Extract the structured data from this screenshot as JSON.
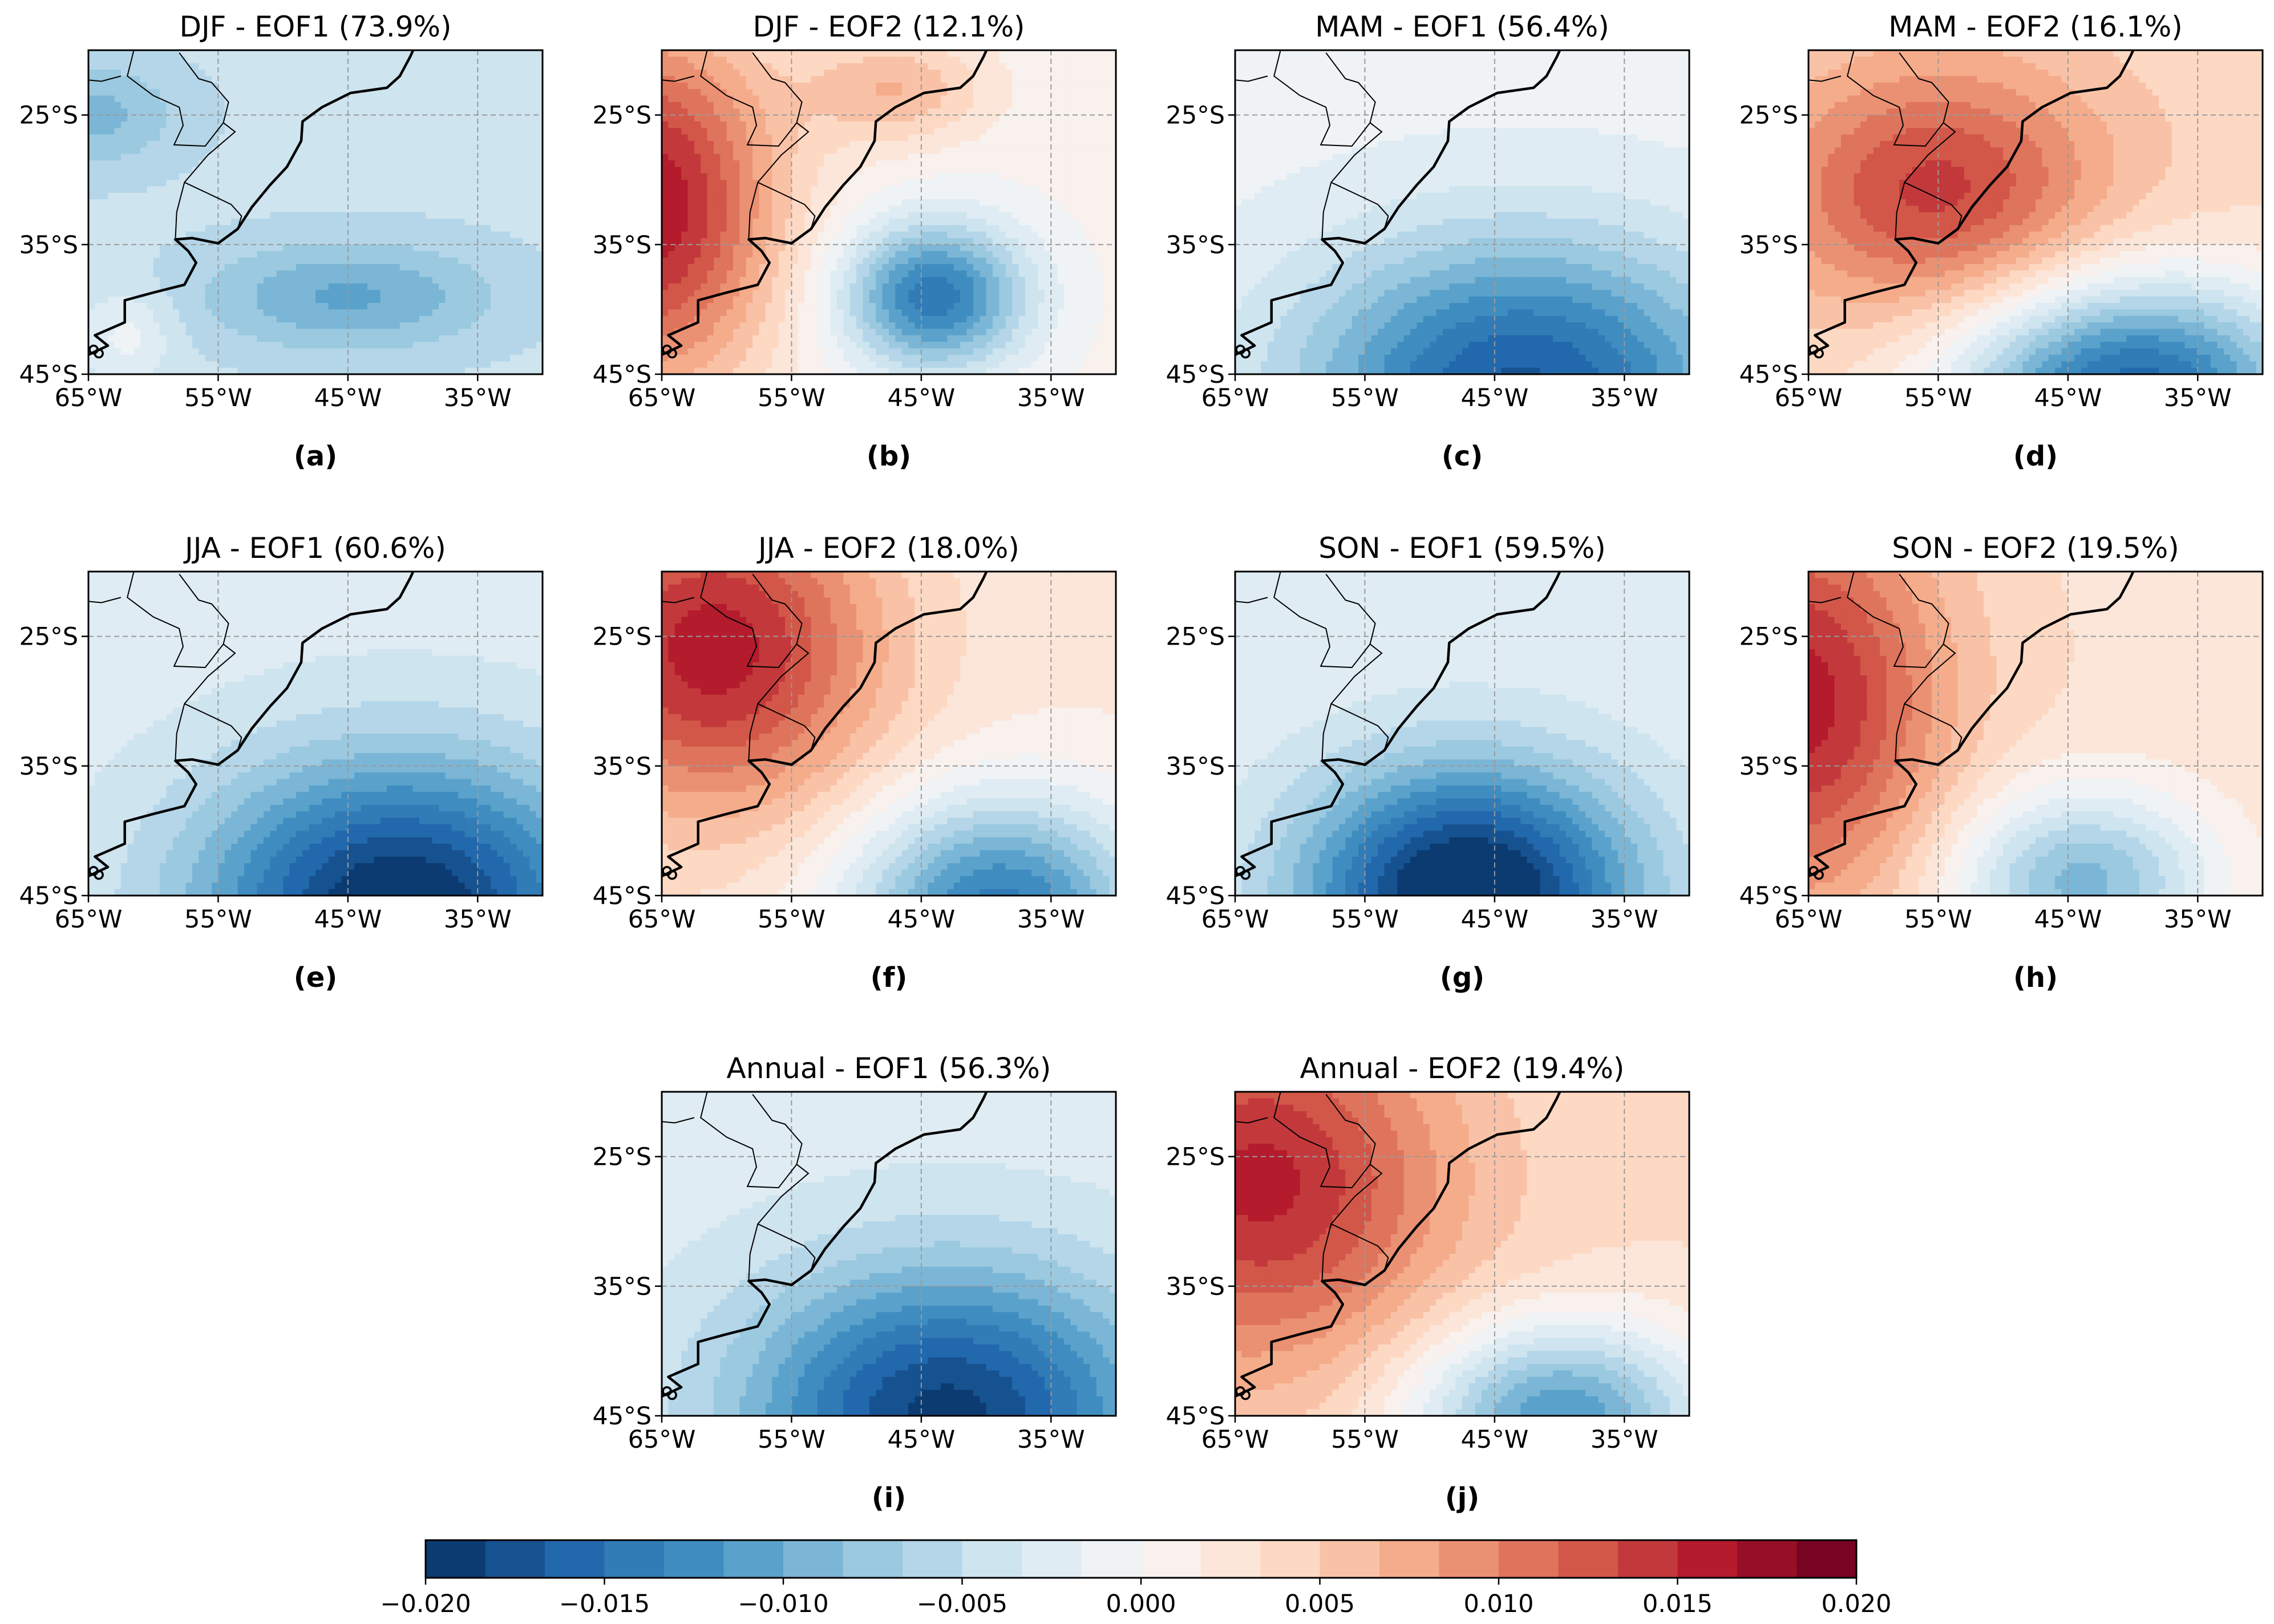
{
  "chart_data": {
    "type": "heatmap",
    "variable": "EOF spatial pattern",
    "map_extent": {
      "lon": [
        -65,
        -30
      ],
      "lat": [
        -45,
        -20
      ]
    },
    "xticks": [
      -65,
      -55,
      -45,
      -35
    ],
    "yticks": [
      -25,
      -35,
      -45
    ],
    "xtick_labels": [
      "65°W",
      "55°W",
      "45°W",
      "35°W"
    ],
    "ytick_labels": [
      "25°S",
      "35°S",
      "45°S"
    ],
    "gridlines": true,
    "panels": [
      {
        "id": "a",
        "label": "(a)",
        "title": "DJF - EOF1 (73.9%)",
        "season": "DJF",
        "mode": "EOF1",
        "variance_pct": 73.9,
        "background": -0.0045,
        "centers": [
          {
            "lon": -45,
            "lat": -39,
            "value": -0.0058,
            "sx": 8,
            "sy": 3
          },
          {
            "lon": -65,
            "lat": -25,
            "value": -0.0045,
            "sx": 5,
            "sy": 3
          },
          {
            "lon": -62,
            "lat": -42,
            "value": 0.0035,
            "sx": 2.5,
            "sy": 2.5
          }
        ]
      },
      {
        "id": "b",
        "label": "(b)",
        "title": "DJF - EOF2 (12.1%)",
        "season": "DJF",
        "mode": "EOF2",
        "variance_pct": 12.1,
        "background": 0.0005,
        "centers": [
          {
            "lon": -44,
            "lat": -39,
            "value": -0.015,
            "sx": 5,
            "sy": 4
          },
          {
            "lon": -66,
            "lat": -32,
            "value": 0.016,
            "sx": 7,
            "sy": 10
          },
          {
            "lon": -47,
            "lat": -23,
            "value": 0.006,
            "sx": 5,
            "sy": 3
          }
        ]
      },
      {
        "id": "c",
        "label": "(c)",
        "title": "MAM - EOF1 (56.4%)",
        "season": "MAM",
        "mode": "EOF1",
        "variance_pct": 56.4,
        "background": -0.001,
        "centers": [
          {
            "lon": -43,
            "lat": -46,
            "value": -0.016,
            "sx": 12,
            "sy": 8
          }
        ]
      },
      {
        "id": "d",
        "label": "(d)",
        "title": "MAM - EOF2 (16.1%)",
        "season": "MAM",
        "mode": "EOF2",
        "variance_pct": 16.1,
        "background": 0.004,
        "centers": [
          {
            "lon": -40,
            "lat": -46,
            "value": -0.02,
            "sx": 10,
            "sy": 6
          },
          {
            "lon": -55,
            "lat": -31,
            "value": 0.01,
            "sx": 9,
            "sy": 7
          }
        ]
      },
      {
        "id": "e",
        "label": "(e)",
        "title": "JJA - EOF1 (60.6%)",
        "season": "JJA",
        "mode": "EOF1",
        "variance_pct": 60.6,
        "background": -0.0025,
        "centers": [
          {
            "lon": -41,
            "lat": -46,
            "value": -0.018,
            "sx": 11,
            "sy": 8
          }
        ]
      },
      {
        "id": "f",
        "label": "(f)",
        "title": "JJA - EOF2 (18.0%)",
        "season": "JJA",
        "mode": "EOF2",
        "variance_pct": 18.0,
        "background": 0.002,
        "centers": [
          {
            "lon": -39,
            "lat": -46,
            "value": -0.016,
            "sx": 8,
            "sy": 6
          },
          {
            "lon": -61,
            "lat": -26,
            "value": 0.014,
            "sx": 9,
            "sy": 9
          }
        ]
      },
      {
        "id": "g",
        "label": "(g)",
        "title": "SON - EOF1 (59.5%)",
        "season": "SON",
        "mode": "EOF1",
        "variance_pct": 59.5,
        "background": -0.002,
        "centers": [
          {
            "lon": -47,
            "lat": -45,
            "value": -0.02,
            "sx": 9,
            "sy": 7
          }
        ]
      },
      {
        "id": "h",
        "label": "(h)",
        "title": "SON - EOF2 (19.5%)",
        "season": "SON",
        "mode": "EOF2",
        "variance_pct": 19.5,
        "background": 0.003,
        "centers": [
          {
            "lon": -44,
            "lat": -44,
            "value": -0.012,
            "sx": 7,
            "sy": 5
          },
          {
            "lon": -66,
            "lat": -30,
            "value": 0.013,
            "sx": 8,
            "sy": 11
          }
        ]
      },
      {
        "id": "i",
        "label": "(i)",
        "title": "Annual - EOF1 (56.3%)",
        "season": "Annual",
        "mode": "EOF1",
        "variance_pct": 56.3,
        "background": -0.0025,
        "centers": [
          {
            "lon": -43,
            "lat": -45,
            "value": -0.0165,
            "sx": 11,
            "sy": 8
          }
        ]
      },
      {
        "id": "j",
        "label": "(j)",
        "title": "Annual - EOF2 (19.4%)",
        "season": "Annual",
        "mode": "EOF2",
        "variance_pct": 19.4,
        "background": 0.0035,
        "centers": [
          {
            "lon": -40,
            "lat": -45,
            "value": -0.015,
            "sx": 8,
            "sy": 5
          },
          {
            "lon": -63,
            "lat": -27,
            "value": 0.012,
            "sx": 10,
            "sy": 10
          }
        ]
      }
    ],
    "colorbar": {
      "cmap": "RdBu_r",
      "vmin": -0.02,
      "vmax": 0.02,
      "levels": 24,
      "tick_values": [
        -0.02,
        -0.015,
        -0.01,
        -0.005,
        0.0,
        0.005,
        0.01,
        0.015,
        0.02
      ],
      "tick_labels": [
        "−0.020",
        "−0.015",
        "−0.010",
        "−0.005",
        "0.000",
        "0.005",
        "0.010",
        "0.015",
        "0.020"
      ]
    }
  }
}
